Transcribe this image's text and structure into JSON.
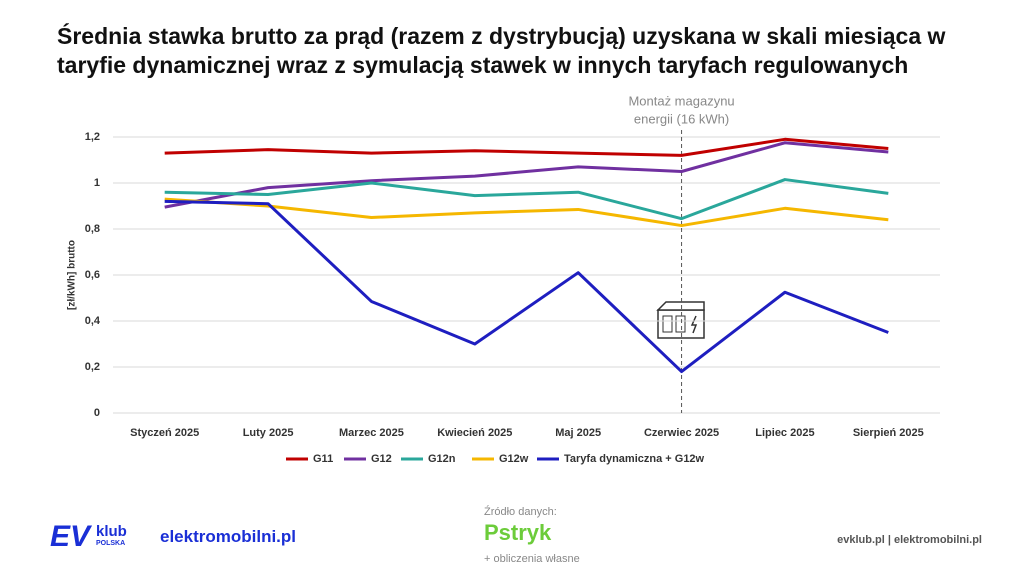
{
  "chart_data": {
    "type": "line",
    "title": "Średnia stawka brutto za prąd (razem z dystrybucją) uzyskana w skali miesiąca w taryfie dynamicznej wraz z symulacją stawek w innych taryfach regulowanych",
    "y_label": "[zł/kWh] brutto",
    "categories": [
      "Styczeń 2025",
      "Luty 2025",
      "Marzec 2025",
      "Kwiecień 2025",
      "Maj 2025",
      "Czerwiec 2025",
      "Lipiec 2025",
      "Sierpień 2025"
    ],
    "series": [
      {
        "name": "G11",
        "color": "#c00000",
        "values": [
          1.13,
          1.145,
          1.13,
          1.14,
          1.13,
          1.12,
          1.19,
          1.15
        ]
      },
      {
        "name": "G12",
        "color": "#7030a0",
        "values": [
          0.895,
          0.98,
          1.01,
          1.03,
          1.07,
          1.05,
          1.175,
          1.135
        ]
      },
      {
        "name": "G12n",
        "color": "#2aa79b",
        "values": [
          0.96,
          0.95,
          1.0,
          0.945,
          0.96,
          0.845,
          1.015,
          0.955
        ]
      },
      {
        "name": "G12w",
        "color": "#f5b700",
        "values": [
          0.93,
          0.9,
          0.85,
          0.87,
          0.885,
          0.815,
          0.89,
          0.84
        ]
      },
      {
        "name": "Taryfa dynamiczna + G12w",
        "color": "#1e1ec0",
        "values": [
          0.92,
          0.91,
          0.485,
          0.3,
          0.61,
          0.18,
          0.525,
          0.35
        ]
      }
    ],
    "ylim": [
      0,
      1.2
    ],
    "yticks": [
      0,
      {
        "value": 0.2,
        "label": "0,2"
      },
      {
        "value": 0.4,
        "label": "0,4"
      },
      {
        "value": 0.6,
        "label": "0,6"
      },
      {
        "value": 0.8,
        "label": "0,8"
      },
      1,
      {
        "value": 1.2,
        "label": "1,2"
      }
    ],
    "grid": true,
    "annotation": {
      "category_index": 5,
      "lines": [
        "Montaż magazynu",
        "energii (16 kWh)"
      ]
    }
  },
  "footer": {
    "logo_ev": "EV",
    "logo_klub": "klub",
    "logo_polska": "POLSKA",
    "site": "elektromobilni.pl",
    "source_label": "Źródło danych:",
    "source_name": "Pstryk",
    "source_note": "+ obliczenia własne",
    "links": "evklub.pl | elektromobilni.pl"
  }
}
